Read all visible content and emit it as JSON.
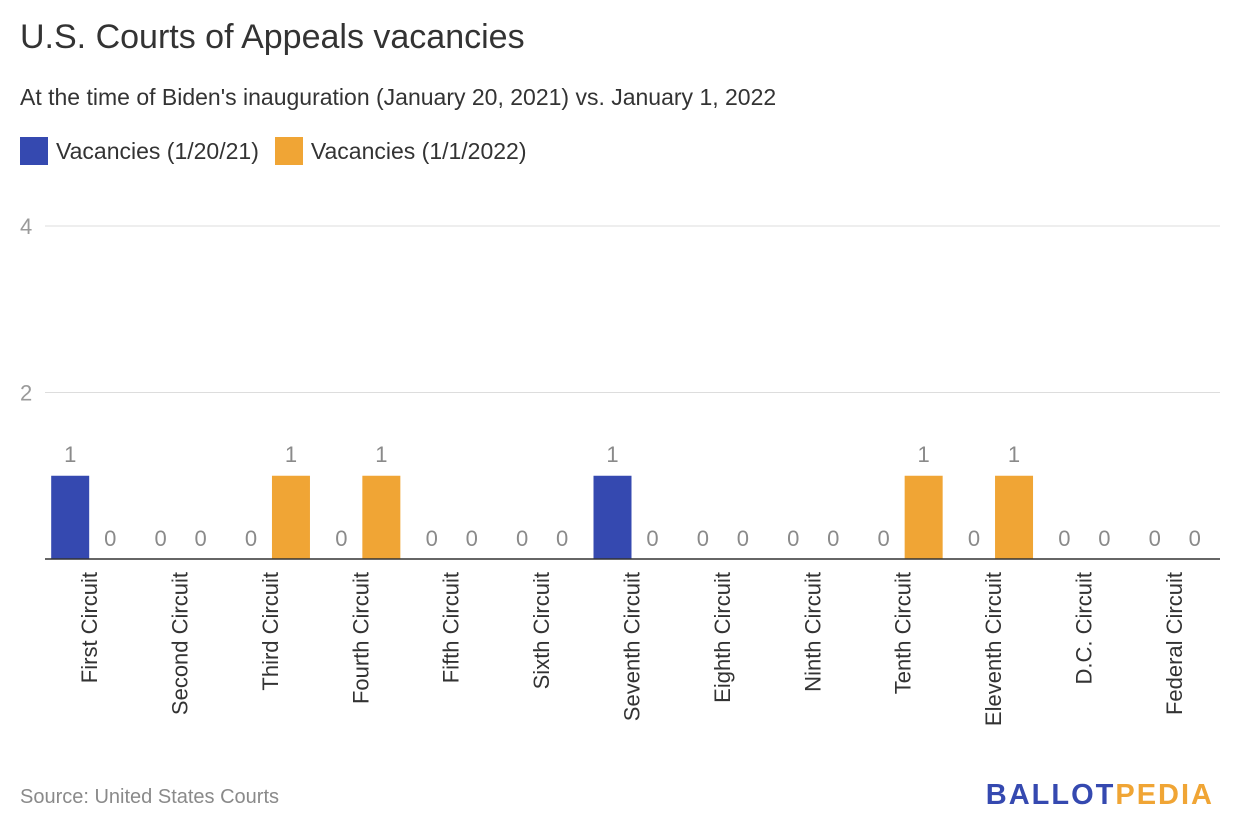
{
  "chart_data": {
    "type": "bar",
    "title": "U.S. Courts of Appeals vacancies",
    "subtitle": "At the time of Biden's inauguration (January 20, 2021) vs. January 1, 2022",
    "categories": [
      "First Circuit",
      "Second Circuit",
      "Third Circuit",
      "Fourth Circuit",
      "Fifth Circuit",
      "Sixth Circuit",
      "Seventh Circuit",
      "Eighth Circuit",
      "Ninth Circuit",
      "Tenth Circuit",
      "Eleventh Circuit",
      "D.C. Circuit",
      "Federal Circuit"
    ],
    "series": [
      {
        "name": "Vacancies (1/20/21)",
        "color": "#3549b0",
        "values": [
          1,
          0,
          0,
          0,
          0,
          0,
          1,
          0,
          0,
          0,
          0,
          0,
          0
        ]
      },
      {
        "name": "Vacancies (1/1/2022)",
        "color": "#f0a535",
        "values": [
          0,
          0,
          1,
          1,
          0,
          0,
          0,
          0,
          0,
          1,
          1,
          0,
          0
        ]
      }
    ],
    "yticks": [
      2,
      4
    ],
    "ylim": [
      0,
      4
    ],
    "grid": true,
    "legend_position": "top-left",
    "xlabel": "",
    "ylabel": ""
  },
  "source": "Source: United States Courts",
  "logo": {
    "part1": "BALLOT",
    "part2": "PEDIA",
    "color1": "#3549b0",
    "color2": "#f0a535"
  }
}
